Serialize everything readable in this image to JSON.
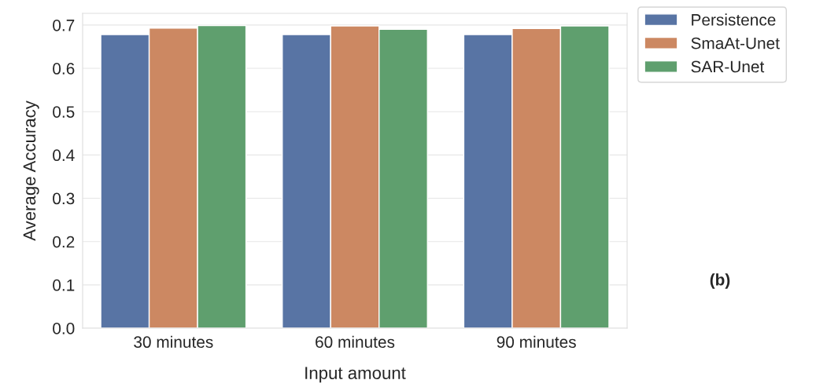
{
  "chart_data": {
    "type": "bar",
    "xlabel": "Input amount",
    "ylabel": "Average Accuracy",
    "categories": [
      "30 minutes",
      "60 minutes",
      "90 minutes"
    ],
    "series": [
      {
        "name": "Persistence",
        "color": "#5874a4",
        "values": [
          0.678,
          0.678,
          0.678
        ]
      },
      {
        "name": "SmaAt-Unet",
        "color": "#cc8862",
        "values": [
          0.693,
          0.698,
          0.692
        ]
      },
      {
        "name": "SAR-Unet",
        "color": "#5f9f6e",
        "values": [
          0.699,
          0.69,
          0.698
        ]
      }
    ],
    "ylim": [
      0,
      0.727
    ],
    "yticks": [
      {
        "value": 0,
        "label": "0.0"
      },
      0.1,
      0.2,
      0.3,
      0.4,
      0.5,
      0.6,
      0.7
    ],
    "grid": "y",
    "legend": "top right",
    "annotations": [
      "(b)"
    ]
  }
}
